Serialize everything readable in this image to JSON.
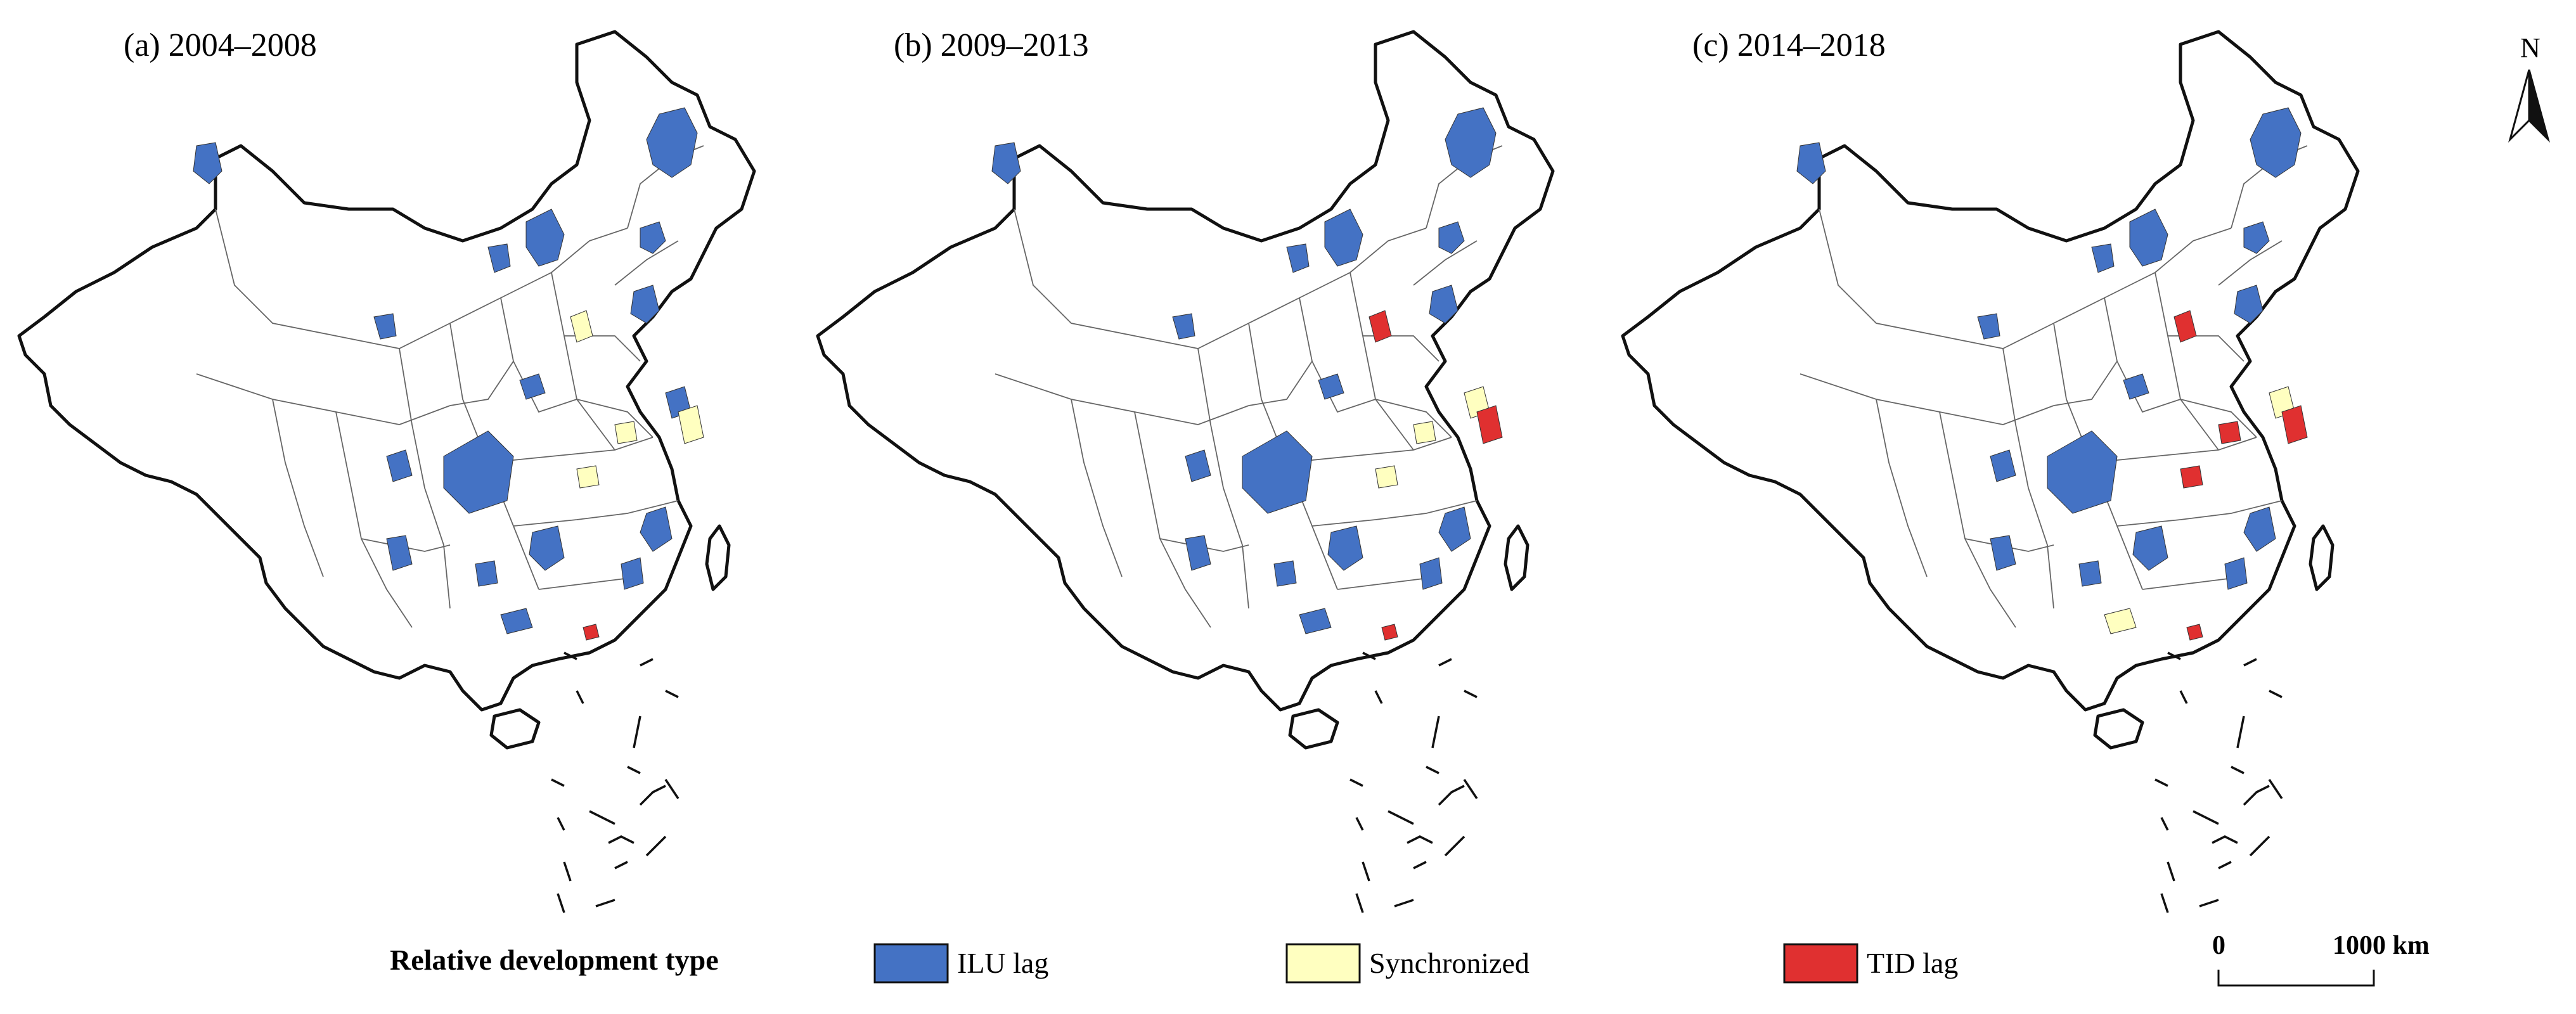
{
  "panels": [
    {
      "title": "(a) 2004–2008",
      "regions": [
        {
          "type": "ilu",
          "shape": "blob-a"
        },
        {
          "type": "ilu",
          "shape": "blob-b"
        },
        {
          "type": "ilu",
          "shape": "blob-c"
        },
        {
          "type": "ilu",
          "shape": "blob-d"
        },
        {
          "type": "ilu",
          "shape": "blob-e"
        },
        {
          "type": "ilu",
          "shape": "blob-f"
        },
        {
          "type": "ilu",
          "shape": "blob-g"
        },
        {
          "type": "ilu",
          "shape": "blob-h"
        },
        {
          "type": "ilu",
          "shape": "blob-i"
        },
        {
          "type": "ilu",
          "shape": "blob-j"
        },
        {
          "type": "ilu",
          "shape": "blob-k"
        },
        {
          "type": "ilu",
          "shape": "blob-l"
        },
        {
          "type": "ilu",
          "shape": "blob-m"
        },
        {
          "type": "ilu",
          "shape": "blob-n"
        },
        {
          "type": "ilu",
          "shape": "blob-o"
        },
        {
          "type": "ilu",
          "shape": "blob-p"
        },
        {
          "type": "ilu",
          "shape": "blob-q"
        },
        {
          "type": "sync",
          "shape": "blob-r"
        },
        {
          "type": "sync",
          "shape": "blob-s"
        },
        {
          "type": "sync",
          "shape": "blob-t"
        },
        {
          "type": "sync",
          "shape": "blob-u"
        },
        {
          "type": "tid",
          "shape": "blob-v"
        }
      ]
    },
    {
      "title": "(b) 2009–2013",
      "regions": [
        {
          "type": "ilu",
          "shape": "blob-a"
        },
        {
          "type": "ilu",
          "shape": "blob-b"
        },
        {
          "type": "ilu",
          "shape": "blob-c"
        },
        {
          "type": "ilu",
          "shape": "blob-d"
        },
        {
          "type": "ilu",
          "shape": "blob-e"
        },
        {
          "type": "ilu",
          "shape": "blob-f"
        },
        {
          "type": "ilu",
          "shape": "blob-g"
        },
        {
          "type": "ilu",
          "shape": "blob-h"
        },
        {
          "type": "ilu",
          "shape": "blob-i"
        },
        {
          "type": "ilu",
          "shape": "blob-j"
        },
        {
          "type": "ilu",
          "shape": "blob-k"
        },
        {
          "type": "ilu",
          "shape": "blob-l"
        },
        {
          "type": "ilu",
          "shape": "blob-m"
        },
        {
          "type": "ilu",
          "shape": "blob-n"
        },
        {
          "type": "ilu",
          "shape": "blob-o"
        },
        {
          "type": "ilu",
          "shape": "blob-p"
        },
        {
          "type": "sync",
          "shape": "blob-q"
        },
        {
          "type": "sync",
          "shape": "blob-r"
        },
        {
          "type": "sync",
          "shape": "blob-s"
        },
        {
          "type": "tid",
          "shape": "blob-t"
        },
        {
          "type": "tid",
          "shape": "blob-u"
        },
        {
          "type": "tid",
          "shape": "blob-v"
        }
      ]
    },
    {
      "title": "(c) 2014–2018",
      "regions": [
        {
          "type": "ilu",
          "shape": "blob-a"
        },
        {
          "type": "ilu",
          "shape": "blob-b"
        },
        {
          "type": "ilu",
          "shape": "blob-c"
        },
        {
          "type": "ilu",
          "shape": "blob-d"
        },
        {
          "type": "ilu",
          "shape": "blob-e"
        },
        {
          "type": "ilu",
          "shape": "blob-f"
        },
        {
          "type": "ilu",
          "shape": "blob-g"
        },
        {
          "type": "ilu",
          "shape": "blob-h"
        },
        {
          "type": "ilu",
          "shape": "blob-i"
        },
        {
          "type": "ilu",
          "shape": "blob-j"
        },
        {
          "type": "ilu",
          "shape": "blob-k"
        },
        {
          "type": "ilu",
          "shape": "blob-l"
        },
        {
          "type": "ilu",
          "shape": "blob-m"
        },
        {
          "type": "ilu",
          "shape": "blob-n"
        },
        {
          "type": "ilu",
          "shape": "blob-o"
        },
        {
          "type": "sync",
          "shape": "blob-p"
        },
        {
          "type": "sync",
          "shape": "blob-q"
        },
        {
          "type": "tid",
          "shape": "blob-r"
        },
        {
          "type": "tid",
          "shape": "blob-s"
        },
        {
          "type": "tid",
          "shape": "blob-t"
        },
        {
          "type": "tid",
          "shape": "blob-u"
        },
        {
          "type": "tid",
          "shape": "blob-v"
        }
      ]
    }
  ],
  "legend": {
    "title": "Relative development type",
    "items": [
      {
        "key": "ilu",
        "label": "ILU lag",
        "color": "#4472c4"
      },
      {
        "key": "sync",
        "label": "Synchronized",
        "color": "#ffffc0"
      },
      {
        "key": "tid",
        "label": "TID lag",
        "color": "#e03030"
      }
    ]
  },
  "scale_bar": {
    "start_label": "0",
    "end_label": "1000 km"
  },
  "north_arrow": {
    "label": "N",
    "icon": "north-arrow-icon"
  }
}
